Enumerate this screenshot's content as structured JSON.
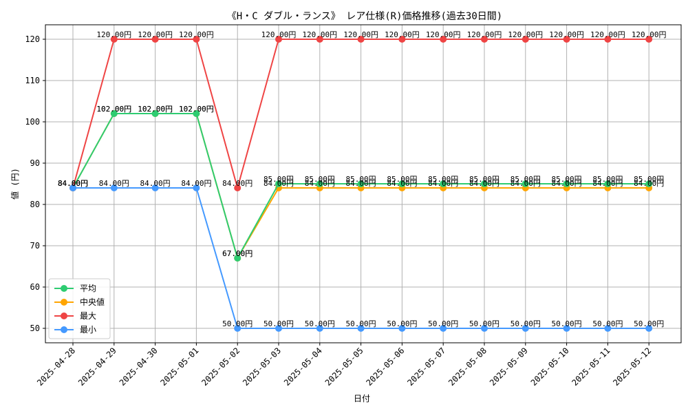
{
  "chart_data": {
    "type": "line",
    "title": "《H・C ダブル・ランス》 レア仕様(R)価格推移(過去30日間)",
    "xlabel": "日付",
    "ylabel": "値 (円)",
    "ylim": [
      46.5,
      123.5
    ],
    "yticks": [
      50,
      60,
      70,
      80,
      90,
      100,
      110,
      120
    ],
    "grid": true,
    "legend_position": "bottom-left",
    "label_suffix": "円",
    "categories": [
      "2025-04-28",
      "2025-04-29",
      "2025-04-30",
      "2025-05-01",
      "2025-05-02",
      "2025-05-03",
      "2025-05-04",
      "2025-05-05",
      "2025-05-06",
      "2025-05-07",
      "2025-05-08",
      "2025-05-09",
      "2025-05-10",
      "2025-05-11",
      "2025-05-12"
    ],
    "series": [
      {
        "name": "平均",
        "key": "avg",
        "color": "#2ecc71",
        "values": [
          84,
          102,
          102,
          102,
          67,
          85,
          85,
          85,
          85,
          85,
          85,
          85,
          85,
          85,
          85
        ]
      },
      {
        "name": "中央値",
        "key": "median",
        "color": "#ffa500",
        "values": [
          84,
          102,
          102,
          102,
          67,
          84,
          84,
          84,
          84,
          84,
          84,
          84,
          84,
          84,
          84
        ]
      },
      {
        "name": "最大",
        "key": "max",
        "color": "#ef4444",
        "values": [
          84,
          120,
          120,
          120,
          84,
          120,
          120,
          120,
          120,
          120,
          120,
          120,
          120,
          120,
          120
        ]
      },
      {
        "name": "最小",
        "key": "min",
        "color": "#4499ff",
        "values": [
          84,
          84,
          84,
          84,
          50,
          50,
          50,
          50,
          50,
          50,
          50,
          50,
          50,
          50,
          50
        ]
      }
    ]
  }
}
